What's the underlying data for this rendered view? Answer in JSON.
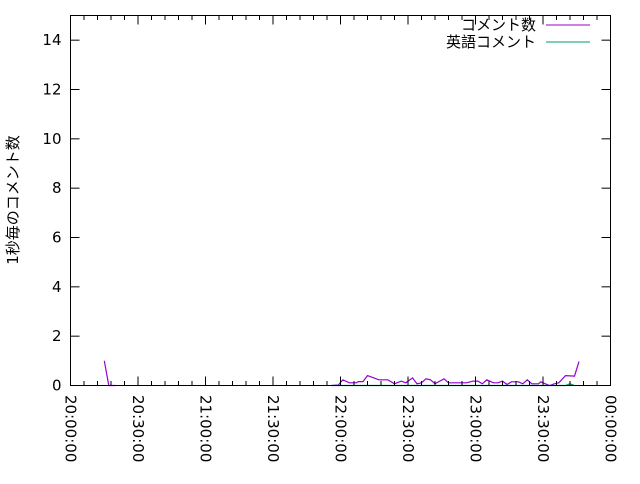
{
  "chart_data": {
    "type": "line",
    "title": "",
    "xlabel": "",
    "ylabel": "1秒毎のコメント数",
    "xlim": [
      "20:00:00",
      "00:00:00"
    ],
    "ylim": [
      0,
      15
    ],
    "x_ticks": [
      "20:00:00",
      "20:30:00",
      "21:00:00",
      "21:30:00",
      "22:00:00",
      "22:30:00",
      "23:00:00",
      "23:30:00",
      "00:00:00"
    ],
    "y_ticks": [
      0,
      2,
      4,
      6,
      8,
      10,
      12,
      14
    ],
    "grid": false,
    "legend": "top-right",
    "series": [
      {
        "name": "コメント数",
        "color": "#9400d3",
        "segments": [
          {
            "x": [
              "20:15",
              "20:17",
              "20:20"
            ],
            "y": [
              1.0,
              0,
              0
            ]
          },
          {
            "x": [
              "21:56",
              "21:59",
              "22:01",
              "22:04",
              "22:07",
              "22:08",
              "22:10",
              "22:12",
              "22:15",
              "22:17",
              "22:21",
              "22:24",
              "22:27",
              "22:29",
              "22:32",
              "22:34",
              "22:36",
              "22:38",
              "22:40",
              "22:42",
              "22:46",
              "22:48",
              "22:56",
              "22:59",
              "23:01",
              "23:03",
              "23:05",
              "23:08",
              "23:10",
              "23:12",
              "23:14",
              "23:16",
              "23:19",
              "23:21",
              "23:23",
              "23:25",
              "23:28",
              "23:29",
              "23:31",
              "23:33",
              "23:35",
              "23:37",
              "23:40",
              "23:44",
              "23:46"
            ],
            "y": [
              0,
              0.02,
              0.23,
              0.11,
              0.11,
              0.16,
              0.16,
              0.4,
              0.3,
              0.23,
              0.23,
              0.07,
              0.18,
              0.11,
              0.31,
              0.07,
              0.11,
              0.27,
              0.23,
              0.07,
              0.27,
              0.11,
              0.11,
              0.18,
              0.18,
              0.07,
              0.23,
              0.11,
              0.11,
              0.18,
              0.04,
              0.15,
              0.15,
              0.07,
              0.23,
              0.07,
              0.07,
              0.15,
              0.07,
              0,
              0.07,
              0.11,
              0.4,
              0.38,
              0.97
            ]
          }
        ]
      },
      {
        "name": "英語コメント",
        "color": "#009e73",
        "segments": [
          {
            "x": [
              "21:56",
              "23:40",
              "23:42",
              "23:44"
            ],
            "y": [
              0,
              0,
              0.07,
              0
            ]
          }
        ]
      }
    ]
  }
}
